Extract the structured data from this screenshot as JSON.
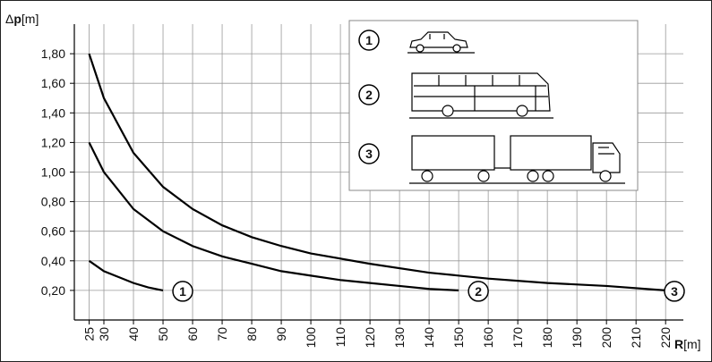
{
  "chart_data": {
    "type": "line",
    "y_label_parts": [
      "Δ",
      "p",
      "[m]"
    ],
    "x_label_parts": [
      "R",
      "[m]"
    ],
    "xlim": [
      20,
      226
    ],
    "ylim": [
      0,
      2.0
    ],
    "xticks": [
      25,
      30,
      40,
      50,
      60,
      70,
      80,
      90,
      100,
      110,
      120,
      130,
      140,
      150,
      160,
      170,
      180,
      190,
      200,
      210,
      220
    ],
    "yticks": [
      {
        "value": 0.2,
        "label": "0,20"
      },
      {
        "value": 0.4,
        "label": "0,40"
      },
      {
        "value": 0.6,
        "label": "0,60"
      },
      {
        "value": 0.8,
        "label": "0,80"
      },
      {
        "value": 1.0,
        "label": "1,00"
      },
      {
        "value": 1.2,
        "label": "1,20"
      },
      {
        "value": 1.4,
        "label": "1,40"
      },
      {
        "value": 1.6,
        "label": "1,60"
      },
      {
        "value": 1.8,
        "label": "1,80"
      }
    ],
    "grid": true,
    "series": [
      {
        "name": "1",
        "color": "#000000",
        "x": [
          25,
          30,
          35,
          40,
          45,
          50
        ],
        "values": [
          0.4,
          0.33,
          0.29,
          0.25,
          0.22,
          0.2
        ]
      },
      {
        "name": "2",
        "color": "#000000",
        "x": [
          25,
          30,
          40,
          50,
          60,
          70,
          80,
          90,
          100,
          110,
          120,
          130,
          140,
          150
        ],
        "values": [
          1.2,
          1.0,
          0.75,
          0.6,
          0.5,
          0.43,
          0.38,
          0.33,
          0.3,
          0.27,
          0.25,
          0.23,
          0.21,
          0.2
        ]
      },
      {
        "name": "3",
        "color": "#000000",
        "x": [
          25,
          30,
          40,
          50,
          60,
          70,
          80,
          90,
          100,
          120,
          140,
          160,
          180,
          200,
          220
        ],
        "values": [
          1.8,
          1.5,
          1.13,
          0.9,
          0.75,
          0.64,
          0.56,
          0.5,
          0.45,
          0.38,
          0.32,
          0.28,
          0.25,
          0.23,
          0.2
        ]
      }
    ]
  }
}
